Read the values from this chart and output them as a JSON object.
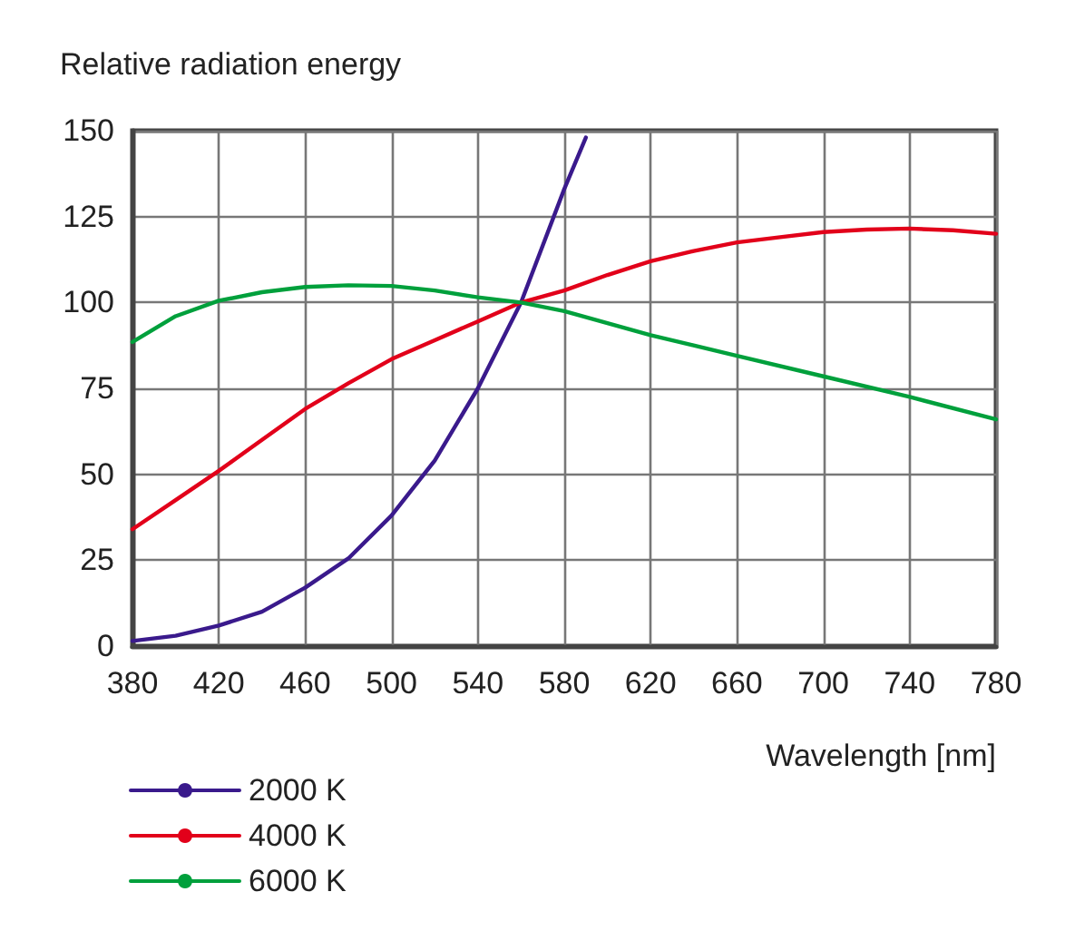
{
  "chart_data": {
    "type": "line",
    "ylabel": "Relative radiation energy",
    "xlabel": "Wavelength [nm]",
    "xlim": [
      380,
      780
    ],
    "xticks": [
      380,
      420,
      460,
      500,
      540,
      580,
      620,
      660,
      700,
      740,
      780
    ],
    "ylim": [
      0,
      150
    ],
    "yticks": [
      0,
      25,
      50,
      75,
      100,
      125,
      150
    ],
    "grid": true,
    "legend": "bottom left",
    "marker": "none",
    "line_style": "solid",
    "series": [
      {
        "name": "2000 K",
        "color": "#3a1a8c",
        "x": [
          380,
          400,
          420,
          440,
          460,
          480,
          500,
          520,
          540,
          560,
          580,
          590
        ],
        "values": [
          1.5,
          3,
          6,
          10,
          17,
          25.5,
          38,
          54,
          75,
          100,
          133,
          148
        ]
      },
      {
        "name": "4000 K",
        "color": "#e2001a",
        "x": [
          380,
          400,
          420,
          440,
          460,
          480,
          500,
          520,
          540,
          560,
          580,
          600,
          620,
          640,
          660,
          680,
          700,
          720,
          740,
          760,
          780
        ],
        "values": [
          34,
          42.5,
          51,
          60,
          69,
          76.5,
          83.5,
          89,
          94.5,
          100,
          103.5,
          108,
          112,
          115,
          117.5,
          119,
          120.5,
          121.2,
          121.5,
          121,
          120
        ]
      },
      {
        "name": "6000 K",
        "color": "#00a03c",
        "x": [
          380,
          400,
          420,
          440,
          460,
          480,
          500,
          520,
          540,
          560,
          580,
          620,
          660,
          700,
          740,
          780
        ],
        "values": [
          88.5,
          96,
          100.5,
          103,
          104.5,
          105,
          104.8,
          103.5,
          101.5,
          100,
          97.5,
          90.5,
          84.5,
          78.5,
          72.5,
          66
        ]
      }
    ]
  }
}
